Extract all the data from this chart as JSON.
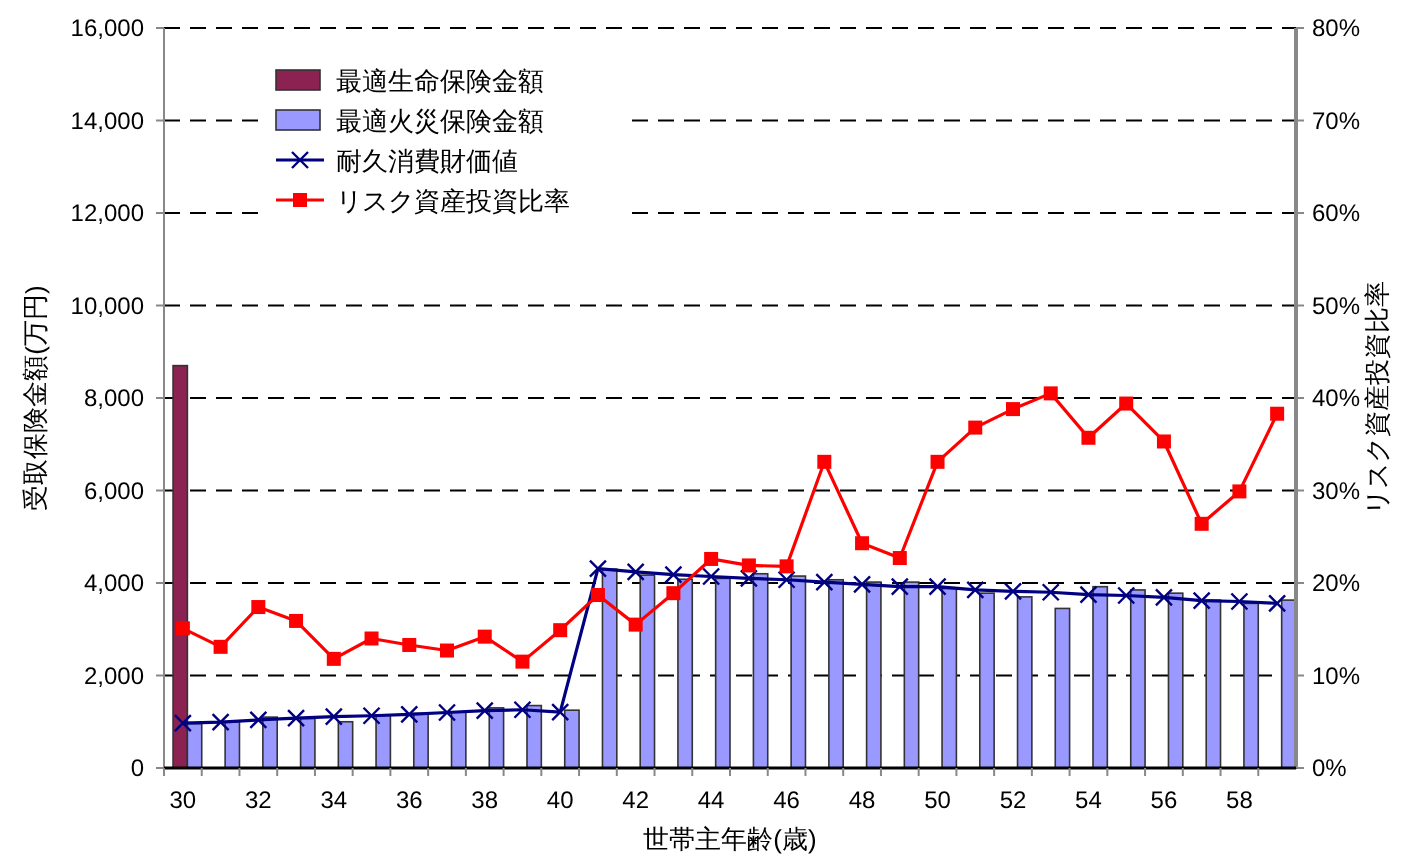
{
  "chart_data": {
    "type": "bar",
    "xlabel": "世帯主年齢(歳)",
    "ylabel": "受取保険金額(万円)",
    "y2label": "リスク資産投資比率",
    "categories": [
      "30",
      null,
      "32",
      null,
      "34",
      null,
      "36",
      null,
      "38",
      null,
      "40",
      null,
      "42",
      null,
      "44",
      null,
      "46",
      null,
      "48",
      null,
      "50",
      null,
      "52",
      null,
      "54",
      null,
      "56",
      null,
      "58",
      null
    ],
    "ylim": [
      0,
      16000
    ],
    "yticks": [
      0,
      {
        "value": 2000,
        "label": "2,000"
      },
      {
        "value": 4000,
        "label": "4,000"
      },
      {
        "value": 6000,
        "label": "6,000"
      },
      {
        "value": 8000,
        "label": "8,000"
      },
      {
        "value": 10000,
        "label": "10,000"
      },
      {
        "value": 12000,
        "label": "12,000"
      },
      {
        "value": 14000,
        "label": "14,000"
      },
      {
        "value": 16000,
        "label": "16,000"
      }
    ],
    "y2lim": [
      0,
      80
    ],
    "y2ticks": [
      {
        "value": 0,
        "label": "0%"
      },
      {
        "value": 10,
        "label": "10%"
      },
      {
        "value": 20,
        "label": "20%"
      },
      {
        "value": 30,
        "label": "30%"
      },
      {
        "value": 40,
        "label": "40%"
      },
      {
        "value": 50,
        "label": "50%"
      },
      {
        "value": 60,
        "label": "60%"
      },
      {
        "value": 70,
        "label": "70%"
      },
      {
        "value": 80,
        "label": "80%"
      }
    ],
    "grid": "y",
    "legend": "top left",
    "series": [
      {
        "name": "最適生命保険金額",
        "color": "#8b2252",
        "values": [
          8700,
          null,
          null,
          null,
          null,
          null,
          null,
          null,
          null,
          null,
          null,
          null,
          null,
          null,
          null,
          null,
          null,
          null,
          null,
          null,
          null,
          null,
          null,
          null,
          null,
          null,
          null,
          null,
          null,
          null
        ]
      },
      {
        "name": "最適火災保険金額",
        "color": "#9999ff",
        "values": [
          960,
          1000,
          1100,
          1070,
          1000,
          1140,
          1180,
          1210,
          1300,
          1350,
          1250,
          4300,
          4170,
          4080,
          4100,
          4200,
          4150,
          4070,
          4020,
          4020,
          3880,
          3780,
          3700,
          3450,
          3920,
          3850,
          3780,
          3630,
          3560,
          3630
        ]
      },
      {
        "name": "耐久消費財価値",
        "type": "line",
        "marker": "cross",
        "color": "#000080",
        "values": [
          970,
          990,
          1040,
          1080,
          1110,
          1130,
          1160,
          1200,
          1240,
          1260,
          1210,
          4310,
          4240,
          4180,
          4140,
          4100,
          4070,
          4020,
          3970,
          3920,
          3920,
          3850,
          3820,
          3800,
          3750,
          3730,
          3690,
          3620,
          3600,
          3560
        ]
      },
      {
        "name": "リスク資産投資比率",
        "type": "line",
        "marker": "square",
        "axis": "y2",
        "color": "#ff0000",
        "values": [
          15.1,
          13.1,
          17.4,
          15.9,
          11.8,
          14.0,
          13.3,
          12.7,
          14.2,
          11.5,
          14.9,
          18.7,
          15.5,
          18.9,
          22.6,
          21.9,
          21.8,
          33.1,
          24.3,
          22.7,
          33.1,
          36.8,
          38.8,
          40.5,
          35.7,
          39.4,
          35.3,
          26.4,
          29.9,
          38.3
        ]
      }
    ]
  }
}
